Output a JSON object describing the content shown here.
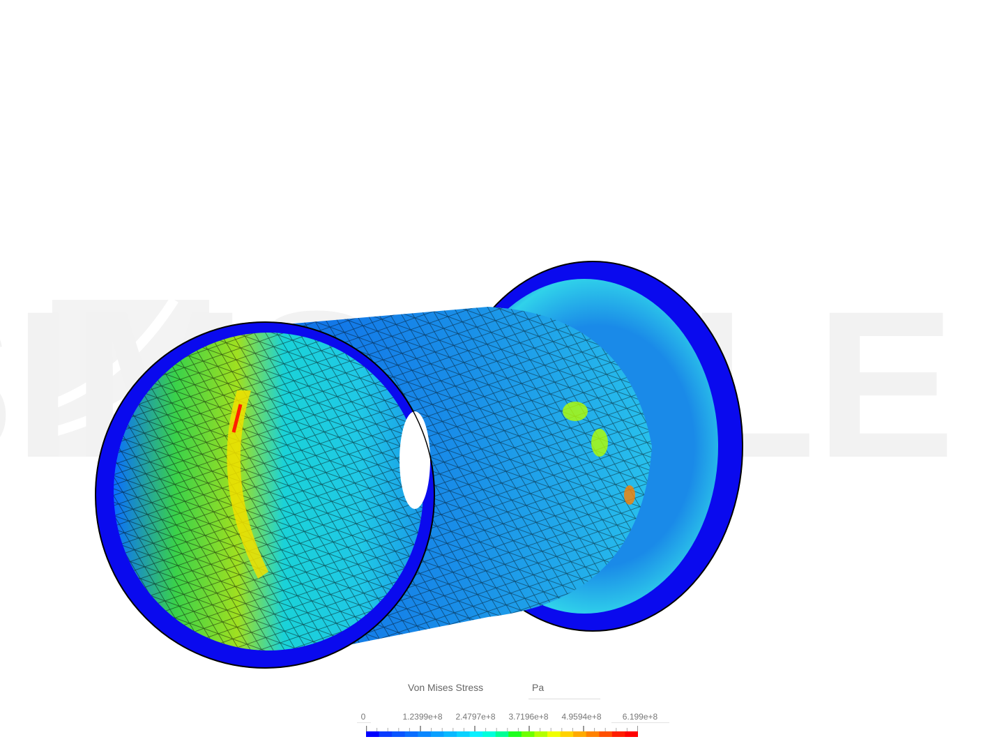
{
  "watermark": "SIMSCALE",
  "legend": {
    "title": "Von Mises Stress",
    "unit": "Pa",
    "tick_labels": [
      "0",
      "1.2399e+8",
      "2.4797e+8",
      "3.7196e+8",
      "4.9594e+8",
      "6.199e+8"
    ],
    "range": [
      0,
      619900000
    ],
    "colormap": [
      "#0000ff",
      "#0a3cff",
      "#0a55ff",
      "#0a6eff",
      "#0a87ff",
      "#0aa0ff",
      "#0ab9ff",
      "#0ad2ff",
      "#0af0ff",
      "#00ffdc",
      "#00ff96",
      "#1eff1e",
      "#6eff00",
      "#b4ff00",
      "#f0ff00",
      "#ffd200",
      "#ffaa00",
      "#ff8200",
      "#ff5000",
      "#ff1e00",
      "#ff0000"
    ]
  },
  "colors": {
    "mesh_edge": "#000000",
    "ring_blue": "#0a0aee",
    "watermark": "#f2f2f2"
  }
}
